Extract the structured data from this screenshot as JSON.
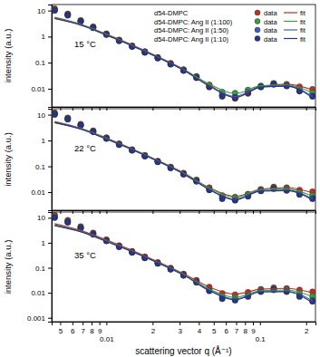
{
  "chart_data": [
    {
      "type": "scatter",
      "log": true,
      "legend": "top-right",
      "tick_labels": "y",
      "marker": "circle",
      "line_style": "solid",
      "annotation": "15 °C",
      "y_label": "intensity (a.u.)",
      "legend_labels": [
        "data",
        "fit"
      ],
      "xlim": [
        0.0044,
        0.23
      ],
      "ylim": [
        0.002,
        17
      ],
      "xticks": [
        0.005,
        0.006,
        0.007,
        0.008,
        0.009,
        0.01,
        0.02,
        0.03,
        0.04,
        0.05,
        0.06,
        0.07,
        0.08,
        0.09,
        0.1,
        0.2
      ],
      "yticks": [
        10,
        1,
        0.1,
        0.01
      ],
      "x": [
        0.0046,
        0.0056,
        0.0068,
        0.0082,
        0.01,
        0.0121,
        0.0147,
        0.0178,
        0.0216,
        0.0262,
        0.0318,
        0.0386,
        0.0468,
        0.0568,
        0.0689,
        0.0836,
        0.1014,
        0.123,
        0.1493,
        0.1811,
        0.22
      ],
      "fit_x": [
        0.0046,
        0.0068,
        0.01,
        0.0147,
        0.0216,
        0.0318,
        0.0468,
        0.0689,
        0.1014,
        0.1493,
        0.22
      ],
      "series": [
        {
          "name": "d54-DMPC",
          "color": "#b8322a",
          "values": [
            12,
            7.5,
            4.2,
            2.4,
            1.3,
            0.75,
            0.45,
            0.27,
            0.16,
            0.095,
            0.055,
            0.03,
            0.014,
            0.0062,
            0.0042,
            0.0065,
            0.012,
            0.016,
            0.015,
            0.012,
            0.0095
          ],
          "fit": [
            5.5,
            3.0,
            1.25,
            0.48,
            0.17,
            0.056,
            0.014,
            0.0045,
            0.012,
            0.015,
            0.009
          ]
        },
        {
          "name": "d54-DMPC: Ang II (1:100)",
          "color": "#3f9a3f",
          "values": [
            11,
            7,
            4.0,
            2.3,
            1.25,
            0.72,
            0.43,
            0.26,
            0.155,
            0.09,
            0.052,
            0.029,
            0.014,
            0.0075,
            0.0068,
            0.009,
            0.013,
            0.016,
            0.014,
            0.01,
            0.007
          ],
          "fit": [
            5.2,
            2.9,
            1.2,
            0.46,
            0.165,
            0.054,
            0.015,
            0.0065,
            0.013,
            0.014,
            0.007
          ]
        },
        {
          "name": "d54-DMPC: Ang II (1:50)",
          "color": "#3b62b0",
          "values": [
            10.5,
            6.8,
            3.9,
            2.2,
            1.2,
            0.7,
            0.42,
            0.25,
            0.15,
            0.088,
            0.05,
            0.027,
            0.012,
            0.0055,
            0.0048,
            0.0075,
            0.012,
            0.015,
            0.013,
            0.0085,
            0.0055
          ],
          "fit": [
            5.0,
            2.8,
            1.15,
            0.45,
            0.16,
            0.052,
            0.013,
            0.005,
            0.012,
            0.013,
            0.005
          ]
        },
        {
          "name": "d54-DMPC: Ang II (1:10)",
          "color": "#2a3580",
          "values": [
            10,
            6.5,
            3.8,
            2.15,
            1.18,
            0.68,
            0.41,
            0.245,
            0.148,
            0.086,
            0.049,
            0.026,
            0.0115,
            0.005,
            0.0045,
            0.007,
            0.0115,
            0.0145,
            0.0125,
            0.008,
            0.005
          ],
          "fit": [
            4.9,
            2.75,
            1.13,
            0.44,
            0.158,
            0.051,
            0.0125,
            0.0046,
            0.0115,
            0.0125,
            0.0045
          ]
        }
      ]
    },
    {
      "type": "scatter",
      "log": true,
      "tick_labels": "y",
      "marker": "circle",
      "line_style": "solid",
      "annotation": "22 °C",
      "y_label": "intensity (a.u.)",
      "xlim": [
        0.0044,
        0.23
      ],
      "ylim": [
        0.002,
        17
      ],
      "xticks": [
        0.005,
        0.006,
        0.007,
        0.008,
        0.009,
        0.01,
        0.02,
        0.03,
        0.04,
        0.05,
        0.06,
        0.07,
        0.08,
        0.09,
        0.1,
        0.2
      ],
      "yticks": [
        10,
        1,
        0.1,
        0.01
      ],
      "x": [
        0.0046,
        0.0056,
        0.0068,
        0.0082,
        0.01,
        0.0121,
        0.0147,
        0.0178,
        0.0216,
        0.0262,
        0.0318,
        0.0386,
        0.0468,
        0.0568,
        0.0689,
        0.0836,
        0.1014,
        0.123,
        0.1493,
        0.1811,
        0.22
      ],
      "fit_x": [
        0.0046,
        0.0068,
        0.01,
        0.0147,
        0.0216,
        0.0318,
        0.0468,
        0.0689,
        0.1014,
        0.1493,
        0.22
      ],
      "series": [
        {
          "name": "d54-DMPC",
          "color": "#b8322a",
          "values": [
            12,
            7.6,
            4.3,
            2.4,
            1.3,
            0.76,
            0.45,
            0.27,
            0.16,
            0.095,
            0.055,
            0.03,
            0.015,
            0.0075,
            0.0065,
            0.0085,
            0.013,
            0.016,
            0.015,
            0.012,
            0.0105
          ],
          "fit": [
            5.5,
            3.0,
            1.25,
            0.48,
            0.17,
            0.056,
            0.015,
            0.0068,
            0.013,
            0.015,
            0.0095
          ]
        },
        {
          "name": "d54-DMPC: Ang II (1:100)",
          "color": "#3f9a3f",
          "values": [
            11,
            7.1,
            4.0,
            2.3,
            1.25,
            0.72,
            0.43,
            0.26,
            0.155,
            0.09,
            0.052,
            0.029,
            0.014,
            0.007,
            0.0062,
            0.0082,
            0.0125,
            0.015,
            0.0135,
            0.0095,
            0.0075
          ],
          "fit": [
            5.2,
            2.9,
            1.2,
            0.46,
            0.165,
            0.054,
            0.014,
            0.0064,
            0.0125,
            0.0135,
            0.007
          ]
        },
        {
          "name": "d54-DMPC: Ang II (1:50)",
          "color": "#3b62b0",
          "values": [
            10.5,
            6.8,
            3.9,
            2.2,
            1.2,
            0.7,
            0.42,
            0.25,
            0.15,
            0.088,
            0.05,
            0.027,
            0.0125,
            0.006,
            0.0052,
            0.0072,
            0.0115,
            0.014,
            0.012,
            0.0085,
            0.006
          ],
          "fit": [
            5.0,
            2.8,
            1.15,
            0.45,
            0.16,
            0.052,
            0.0128,
            0.0054,
            0.0115,
            0.012,
            0.0055
          ]
        },
        {
          "name": "d54-DMPC: Ang II (1:10)",
          "color": "#2a3580",
          "values": [
            10,
            6.6,
            3.8,
            2.15,
            1.18,
            0.68,
            0.41,
            0.245,
            0.148,
            0.086,
            0.049,
            0.026,
            0.012,
            0.0055,
            0.0048,
            0.0068,
            0.011,
            0.0135,
            0.0115,
            0.008,
            0.0055
          ],
          "fit": [
            4.9,
            2.75,
            1.13,
            0.44,
            0.158,
            0.051,
            0.0125,
            0.005,
            0.011,
            0.0115,
            0.005
          ]
        }
      ]
    },
    {
      "type": "scatter",
      "log": true,
      "marker": "circle",
      "line_style": "solid",
      "annotation": "35 °C",
      "y_label": "intensity (a.u.)",
      "x_label": "scattering vector q (Å⁻¹)",
      "xlim": [
        0.0044,
        0.23
      ],
      "ylim": [
        0.0007,
        17
      ],
      "xticks": [
        {
          "value": 0.005,
          "label": "5"
        },
        {
          "value": 0.006,
          "label": "6"
        },
        {
          "value": 0.007,
          "label": "7"
        },
        {
          "value": 0.008,
          "label": "8"
        },
        {
          "value": 0.009,
          "label": "9"
        },
        0.01,
        {
          "value": 0.02,
          "label": "2"
        },
        {
          "value": 0.03,
          "label": "3"
        },
        {
          "value": 0.04,
          "label": "4"
        },
        {
          "value": 0.05,
          "label": "5"
        },
        {
          "value": 0.06,
          "label": "6"
        },
        {
          "value": 0.07,
          "label": "7"
        },
        {
          "value": 0.08,
          "label": "8"
        },
        {
          "value": 0.09,
          "label": "9"
        },
        0.1,
        {
          "value": 0.2,
          "label": "2"
        }
      ],
      "yticks": [
        10,
        1,
        0.1,
        0.01,
        0.001
      ],
      "x": [
        0.0046,
        0.0056,
        0.0068,
        0.0082,
        0.01,
        0.0121,
        0.0147,
        0.0178,
        0.0216,
        0.0262,
        0.0318,
        0.0386,
        0.0468,
        0.0568,
        0.0689,
        0.0836,
        0.1014,
        0.123,
        0.1493,
        0.1811,
        0.22
      ],
      "fit_x": [
        0.0046,
        0.0068,
        0.01,
        0.0147,
        0.0216,
        0.0318,
        0.0468,
        0.0689,
        0.1014,
        0.1493,
        0.22
      ],
      "series": [
        {
          "name": "d54-DMPC",
          "color": "#b8322a",
          "values": [
            13,
            8,
            4.5,
            2.5,
            1.35,
            0.78,
            0.46,
            0.28,
            0.165,
            0.098,
            0.057,
            0.032,
            0.017,
            0.0095,
            0.0085,
            0.0105,
            0.014,
            0.016,
            0.015,
            0.013,
            0.011
          ],
          "fit": [
            5.8,
            3.1,
            1.3,
            0.5,
            0.175,
            0.058,
            0.017,
            0.0088,
            0.014,
            0.015,
            0.01
          ]
        },
        {
          "name": "d54-DMPC: Ang II (1:100)",
          "color": "#3f9a3f",
          "values": [
            11.5,
            7.2,
            4.1,
            2.3,
            1.25,
            0.72,
            0.43,
            0.26,
            0.155,
            0.09,
            0.052,
            0.029,
            0.014,
            0.0072,
            0.0065,
            0.0085,
            0.0125,
            0.0145,
            0.013,
            0.0095,
            0.0072
          ],
          "fit": [
            5.3,
            2.9,
            1.2,
            0.46,
            0.165,
            0.054,
            0.0142,
            0.0066,
            0.0122,
            0.013,
            0.007
          ]
        },
        {
          "name": "d54-DMPC: Ang II (1:50)",
          "color": "#3b62b0",
          "values": [
            10.5,
            6.8,
            3.9,
            2.2,
            1.2,
            0.7,
            0.42,
            0.25,
            0.15,
            0.088,
            0.05,
            0.027,
            0.0125,
            0.0062,
            0.0055,
            0.0075,
            0.0115,
            0.0135,
            0.0115,
            0.0075,
            0.005
          ],
          "fit": [
            5.0,
            2.8,
            1.15,
            0.45,
            0.16,
            0.052,
            0.0128,
            0.0056,
            0.0112,
            0.0115,
            0.0048
          ]
        },
        {
          "name": "d54-DMPC: Ang II (1:10)",
          "color": "#2a3580",
          "values": [
            10,
            6.5,
            3.8,
            2.15,
            1.18,
            0.68,
            0.41,
            0.245,
            0.148,
            0.086,
            0.049,
            0.026,
            0.0118,
            0.0057,
            0.005,
            0.007,
            0.011,
            0.013,
            0.011,
            0.007,
            0.0045
          ],
          "fit": [
            4.9,
            2.75,
            1.13,
            0.44,
            0.158,
            0.051,
            0.0122,
            0.0052,
            0.0108,
            0.011,
            0.004
          ]
        }
      ]
    }
  ]
}
